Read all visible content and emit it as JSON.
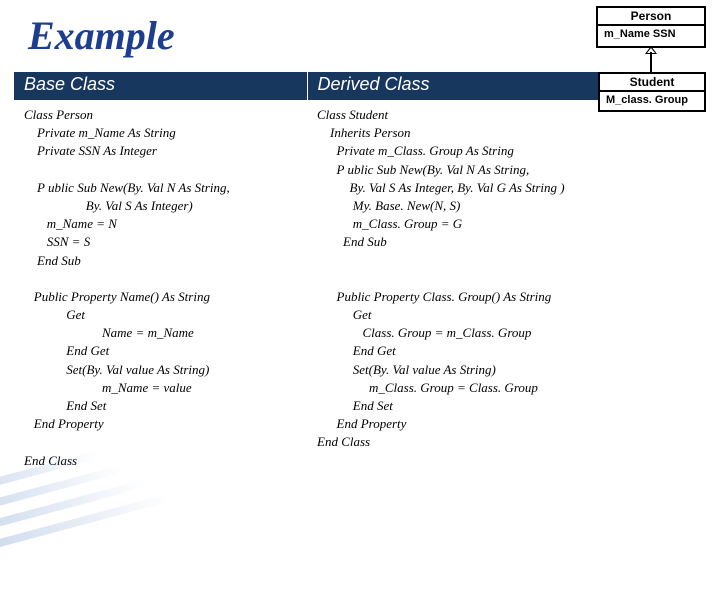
{
  "title": "Example",
  "headers": {
    "base": "Base Class",
    "derived": "Derived Class"
  },
  "code": {
    "base": "Class Person\n    Private m_Name As String\n    Private SSN As Integer\n\n    P ublic Sub New(By. Val N As String,\n                   By. Val S As Integer)\n       m_Name = N\n       SSN = S\n    End Sub\n\n   Public Property Name() As String\n             Get\n                        Name = m_Name\n             End Get\n             Set(By. Val value As String)\n                        m_Name = value\n             End Set\n   End Property\n\nEnd Class",
    "derived": "Class Student\n    Inherits Person\n      Private m_Class. Group As String\n      P ublic Sub New(By. Val N As String,\n          By. Val S As Integer, By. Val G As String )\n           My. Base. New(N, S)\n           m_Class. Group = G\n        End Sub\n\n\n      Public Property Class. Group() As String\n           Get\n              Class. Group = m_Class. Group\n           End Get\n           Set(By. Val value As String)\n                m_Class. Group = Class. Group\n           End Set\n      End Property\nEnd Class"
  },
  "uml": {
    "person": {
      "title": "Person",
      "attrs": "m_Name\nSSN"
    },
    "student": {
      "title": "Student",
      "attrs": "M_class. Group"
    }
  },
  "colors": {
    "title": "#1d3e8f",
    "header_bg": "#17375e",
    "header_fg": "#ffffff",
    "code_fg": "#000000",
    "bg": "#ffffff"
  }
}
